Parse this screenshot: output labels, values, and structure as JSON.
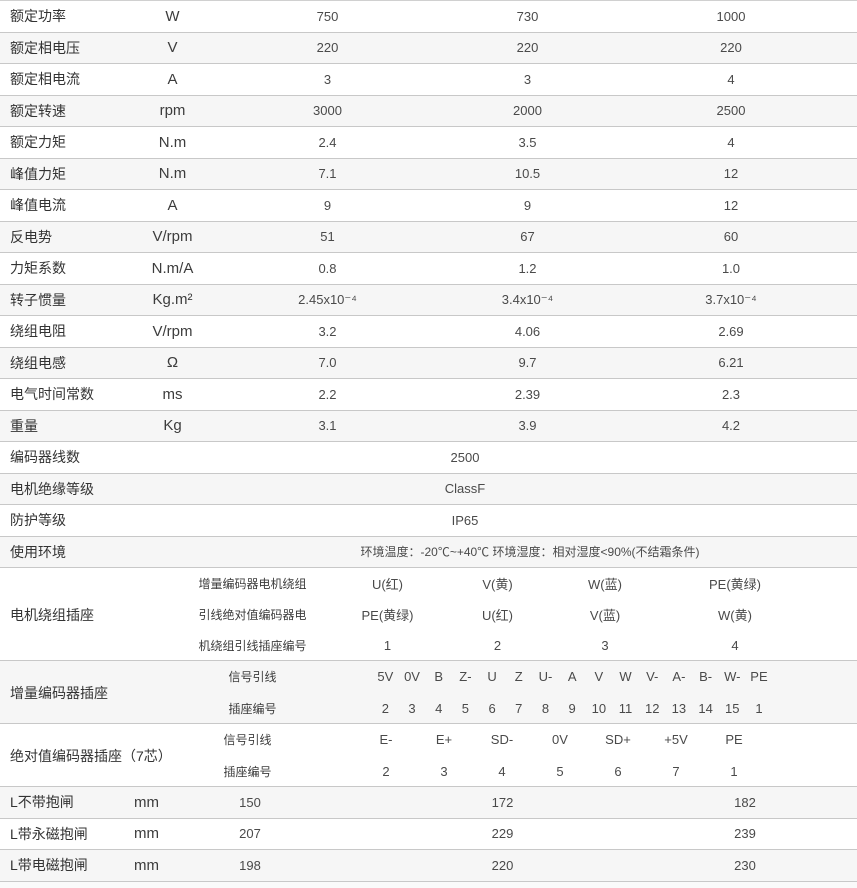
{
  "table": {
    "spec_rows": [
      {
        "label": "额定功率",
        "unit": "W",
        "values": [
          "750",
          "730",
          "1000"
        ]
      },
      {
        "label": "额定相电压",
        "unit": "V",
        "values": [
          "220",
          "220",
          "220"
        ]
      },
      {
        "label": "额定相电流",
        "unit": "A",
        "values": [
          "3",
          "3",
          "4"
        ]
      },
      {
        "label": "额定转速",
        "unit": "rpm",
        "values": [
          "3000",
          "2000",
          "2500"
        ]
      },
      {
        "label": "额定力矩",
        "unit": "N.m",
        "values": [
          "2.4",
          "3.5",
          "4"
        ]
      },
      {
        "label": "峰值力矩",
        "unit": "N.m",
        "values": [
          "7.1",
          "10.5",
          "12"
        ]
      },
      {
        "label": "峰值电流",
        "unit": "A",
        "values": [
          "9",
          "9",
          "12"
        ]
      },
      {
        "label": "反电势",
        "unit": "V/rpm",
        "values": [
          "51",
          "67",
          "60"
        ]
      },
      {
        "label": "力矩系数",
        "unit": "N.m/A",
        "values": [
          "0.8",
          "1.2",
          "1.0"
        ]
      },
      {
        "label": "转子惯量",
        "unit": "Kg.m²",
        "values": [
          "2.45x10⁻⁴",
          "3.4x10⁻⁴",
          "3.7x10⁻⁴"
        ]
      },
      {
        "label": "绕组电阻",
        "unit": "V/rpm",
        "values": [
          "3.2",
          "4.06",
          "2.69"
        ]
      },
      {
        "label": "绕组电感",
        "unit": "Ω",
        "values": [
          "7.0",
          "9.7",
          "6.21"
        ]
      },
      {
        "label": "电气时间常数",
        "unit": "ms",
        "values": [
          "2.2",
          "2.39",
          "2.3"
        ]
      },
      {
        "label": "重量",
        "unit": "Kg",
        "values": [
          "3.1",
          "3.9",
          "4.2"
        ]
      }
    ],
    "info_rows": [
      {
        "label": "编码器线数",
        "value": "2500"
      },
      {
        "label": "电机绝缘等级",
        "value": "ClassF"
      },
      {
        "label": "防护等级",
        "value": "IP65"
      }
    ],
    "env_row": {
      "label": "使用环境",
      "value": "环境温度：-20℃~+40℃ 环境湿度：相对湿度<90%(不结霜条件)"
    },
    "winding_section": {
      "label": "电机绕组插座",
      "rows": [
        {
          "label": "增量编码器电机绕组",
          "values": [
            "U(红)",
            "V(黄)",
            "W(蓝)",
            "PE(黄绿)"
          ]
        },
        {
          "label": "引线绝对值编码器电",
          "values": [
            "PE(黄绿)",
            "U(红)",
            "V(蓝)",
            "W(黄)"
          ]
        },
        {
          "label": "机绕组引线插座编号",
          "values": [
            "1",
            "2",
            "3",
            "4"
          ]
        }
      ]
    },
    "inc_encoder_section": {
      "label": "增量编码器插座",
      "signal_label": "信号引线",
      "pin_label": "插座编号",
      "signals": [
        "5V",
        "0V",
        "B",
        "Z-",
        "U",
        "Z",
        "U-",
        "A",
        "V",
        "W",
        "V-",
        "A-",
        "B-",
        "W-",
        "PE"
      ],
      "pins": [
        "2",
        "3",
        "4",
        "5",
        "6",
        "7",
        "8",
        "9",
        "10",
        "11",
        "12",
        "13",
        "14",
        "15",
        "1"
      ]
    },
    "abs_encoder_section": {
      "label": "绝对值编码器插座（7芯）",
      "signal_label": "信号引线",
      "pin_label": "插座编号",
      "signals": [
        "E-",
        "E+",
        "SD-",
        "0V",
        "SD+",
        "+5V",
        "PE"
      ],
      "pins": [
        "2",
        "3",
        "4",
        "5",
        "6",
        "7",
        "1"
      ]
    },
    "length_rows": [
      {
        "label": "L不带抱闸",
        "unit": "mm",
        "values": [
          "150",
          "172",
          "182"
        ]
      },
      {
        "label": "L带永磁抱闸",
        "unit": "mm",
        "values": [
          "207",
          "229",
          "239"
        ]
      },
      {
        "label": "L带电磁抱闸",
        "unit": "mm",
        "values": [
          "198",
          "220",
          "230"
        ]
      }
    ]
  },
  "colors": {
    "stripe": "#f6f6f6",
    "border": "#c8c8c8"
  }
}
